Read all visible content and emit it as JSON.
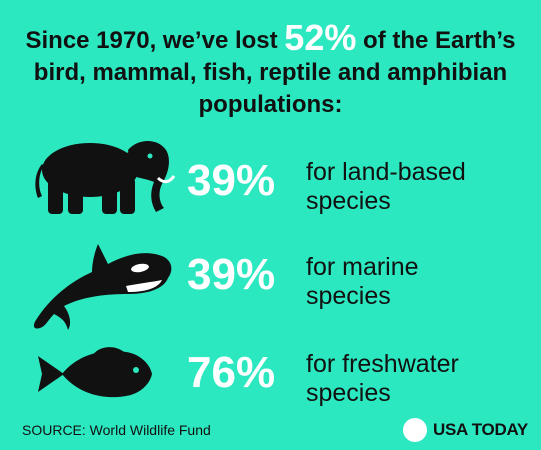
{
  "headline": {
    "before": "Since 1970, we’ve lost ",
    "highlight": "52%",
    "after": " of the Earth’s bird, mammal, fish, reptile and amphibian populations:"
  },
  "rows": [
    {
      "icon": "elephant-icon",
      "percent": "39%",
      "line1": "for land-based",
      "line2": "species"
    },
    {
      "icon": "orca-icon",
      "percent": "39%",
      "line1": "for marine",
      "line2": "species"
    },
    {
      "icon": "fish-icon",
      "percent": "76%",
      "line1": "for freshwater",
      "line2": "species"
    }
  ],
  "source": "SOURCE: World Wildlife Fund",
  "brand": "USA TODAY",
  "colors": {
    "background": "#2ce8c0",
    "highlight": "#ffffff",
    "text": "#111111"
  }
}
